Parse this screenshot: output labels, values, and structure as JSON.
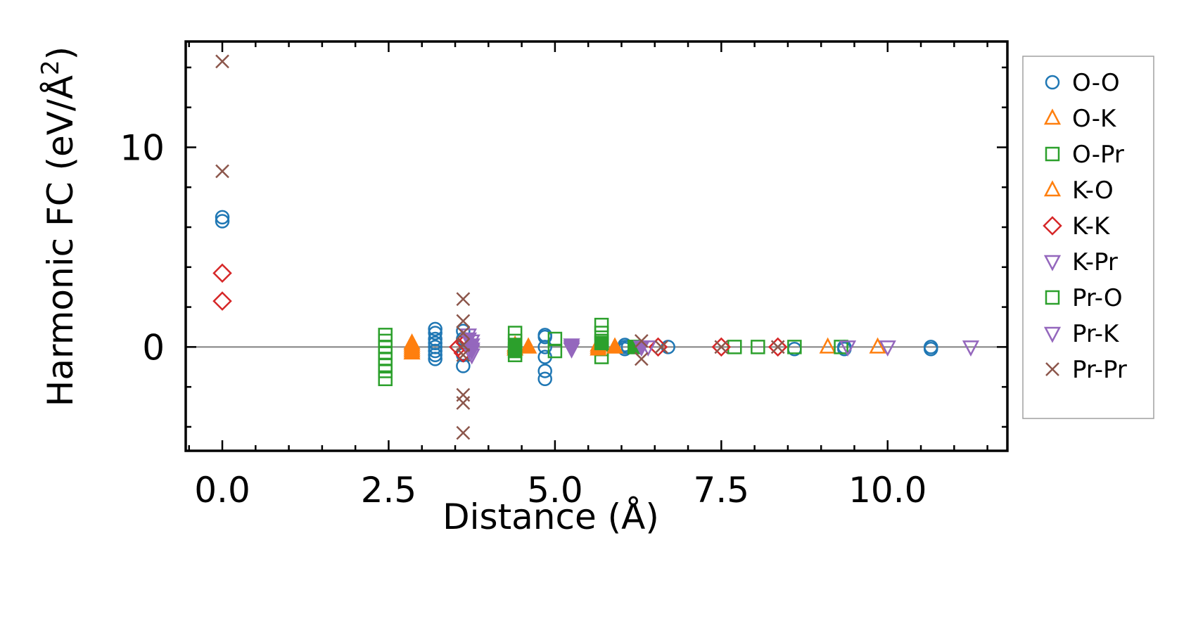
{
  "chart_data": {
    "type": "scatter",
    "title": "",
    "xlabel": "Distance (Å)",
    "ylabel_text": "Harmonic FC (eV/Å",
    "ylabel_sup": "2",
    "ylabel_close": ")",
    "xlim": [
      -0.55,
      11.8
    ],
    "ylim": [
      -5.2,
      15.3
    ],
    "x_ticks": [
      0.0,
      2.5,
      5.0,
      7.5,
      10.0
    ],
    "x_tick_labels": [
      "0.0",
      "2.5",
      "5.0",
      "7.5",
      "10.0"
    ],
    "y_ticks": [
      0,
      10
    ],
    "y_tick_labels": [
      "0",
      "10"
    ],
    "x_minor_step": 0.5,
    "y_minor_step": 2,
    "zero_line": true,
    "grid": false,
    "legend_position": "outside-right",
    "series": [
      {
        "name": "O-O",
        "marker": "circle",
        "filled": false,
        "color": "#1f77b4",
        "x": [
          0,
          0,
          3.2,
          3.2,
          3.2,
          3.2,
          3.2,
          3.2,
          3.2,
          3.2,
          3.62,
          3.62,
          3.62,
          3.62,
          4.85,
          4.85,
          4.85,
          4.85,
          4.85,
          4.85,
          6.05,
          6.05,
          6.05,
          6.1,
          6.7,
          8.6,
          9.35,
          9.35,
          10.65,
          10.65
        ],
        "y": [
          6.5,
          6.3,
          0.9,
          0.7,
          0.4,
          0.2,
          0,
          -0.2,
          -0.4,
          -0.6,
          0.8,
          0.4,
          -0.4,
          -0.95,
          0.6,
          0.5,
          -0.5,
          -1.2,
          -1.6,
          0,
          0.1,
          0,
          -0.1,
          0,
          0,
          -0.1,
          0,
          -0.1,
          0,
          -0.1
        ]
      },
      {
        "name": "O-K",
        "marker": "triangle-up",
        "filled": false,
        "color": "#ff7f0e",
        "x": [
          2.85,
          2.85,
          2.85,
          4.4,
          4.6,
          5.65,
          5.9,
          9.1,
          9.85
        ],
        "y": [
          0.2,
          0,
          -0.2,
          0,
          0,
          0,
          0,
          0,
          0
        ]
      },
      {
        "name": "O-Pr",
        "marker": "square",
        "filled": false,
        "color": "#2ca02c",
        "x": [
          2.45,
          2.45,
          2.45,
          2.45,
          2.45,
          2.45,
          2.45,
          2.45,
          4.4,
          4.4,
          4.4,
          4.4,
          5.0,
          5.0,
          5.7,
          5.7,
          5.7,
          5.7,
          5.7,
          6.2,
          7.7,
          8.05,
          8.6,
          9.3
        ],
        "y": [
          0.6,
          0.3,
          0,
          -0.3,
          -0.6,
          -0.9,
          -1.2,
          -1.6,
          0.7,
          0.3,
          -0.1,
          -0.4,
          0.4,
          -0.2,
          1.1,
          0.7,
          0.3,
          -0.1,
          -0.5,
          0,
          0,
          0,
          0,
          0
        ]
      },
      {
        "name": "K-O",
        "marker": "triangle-up",
        "filled": true,
        "color": "#ff7f0e",
        "x": [
          2.85,
          2.85,
          2.85,
          4.4,
          4.4,
          4.6,
          5.65,
          5.65,
          5.9
        ],
        "y": [
          0.1,
          -0.1,
          -0.3,
          0.1,
          -0.1,
          0,
          0.1,
          -0.1,
          0
        ]
      },
      {
        "name": "K-K",
        "marker": "diamond",
        "filled": false,
        "color": "#d62728",
        "x": [
          0,
          0,
          3.55,
          3.62,
          3.65,
          6.55,
          7.5,
          8.35
        ],
        "y": [
          3.7,
          2.3,
          0,
          -0.3,
          0.2,
          0,
          0,
          0
        ]
      },
      {
        "name": "K-Pr",
        "marker": "triangle-down",
        "filled": false,
        "color": "#9467bd",
        "x": [
          3.7,
          3.75,
          3.75,
          3.75,
          5.25,
          6.3,
          6.4,
          9.4,
          10.0,
          11.25
        ],
        "y": [
          0.6,
          0.3,
          -0.1,
          -0.4,
          0,
          0,
          0,
          0,
          0,
          0
        ]
      },
      {
        "name": "Pr-O",
        "marker": "square",
        "filled": true,
        "color": "#2ca02c",
        "x": [
          4.4,
          4.4,
          5.7,
          6.2
        ],
        "y": [
          0.1,
          -0.2,
          0.2,
          0
        ]
      },
      {
        "name": "Pr-K",
        "marker": "triangle-down",
        "filled": true,
        "color": "#9467bd",
        "x": [
          3.7,
          3.75,
          3.75,
          5.25,
          5.25,
          6.3
        ],
        "y": [
          0.4,
          0.1,
          -0.2,
          0.1,
          -0.1,
          0
        ]
      },
      {
        "name": "Pr-Pr",
        "marker": "x",
        "filled": false,
        "color": "#8c564b",
        "x": [
          0,
          0,
          3.62,
          3.62,
          3.62,
          3.62,
          3.62,
          3.62,
          3.62,
          3.62,
          6.3,
          6.3,
          6.6,
          7.5,
          8.35
        ],
        "y": [
          14.3,
          8.8,
          2.4,
          1.3,
          0.7,
          0.1,
          -0.4,
          -2.4,
          -2.8,
          -4.3,
          0.3,
          -0.6,
          0,
          0,
          0
        ]
      }
    ]
  }
}
